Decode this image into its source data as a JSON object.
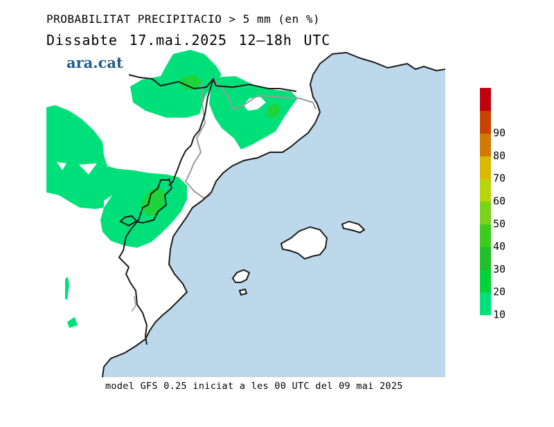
{
  "header": {
    "title": "PROBABILITAT PRECIPITACIO > 5 mm (en %)",
    "subtitle": "Dissabte    17.mai.2025  12–18h  UTC",
    "logo_text": "ara.cat"
  },
  "footer": {
    "model_info": "model GFS 0.25 iniciat a les 00 UTC del 09 mai 2025"
  },
  "legend": {
    "bins": [
      {
        "label": "10",
        "color": "#00e07a"
      },
      {
        "label": "20",
        "color": "#00d23a"
      },
      {
        "label": "30",
        "color": "#1fc02a"
      },
      {
        "label": "40",
        "color": "#3dcc1c"
      },
      {
        "label": "50",
        "color": "#7ad21a"
      },
      {
        "label": "60",
        "color": "#b8d40c"
      },
      {
        "label": "70",
        "color": "#d8b800"
      },
      {
        "label": "80",
        "color": "#d07a00"
      },
      {
        "label": "90",
        "color": "#c84400"
      },
      {
        "label": "",
        "color": "#c00010"
      }
    ]
  },
  "colors": {
    "sea": "#bcd8ea",
    "land": "#ffffff",
    "prob_10": "#00e07a",
    "prob_20": "#1fd43a",
    "coast": "#1a1a1a",
    "border": "#999999"
  }
}
